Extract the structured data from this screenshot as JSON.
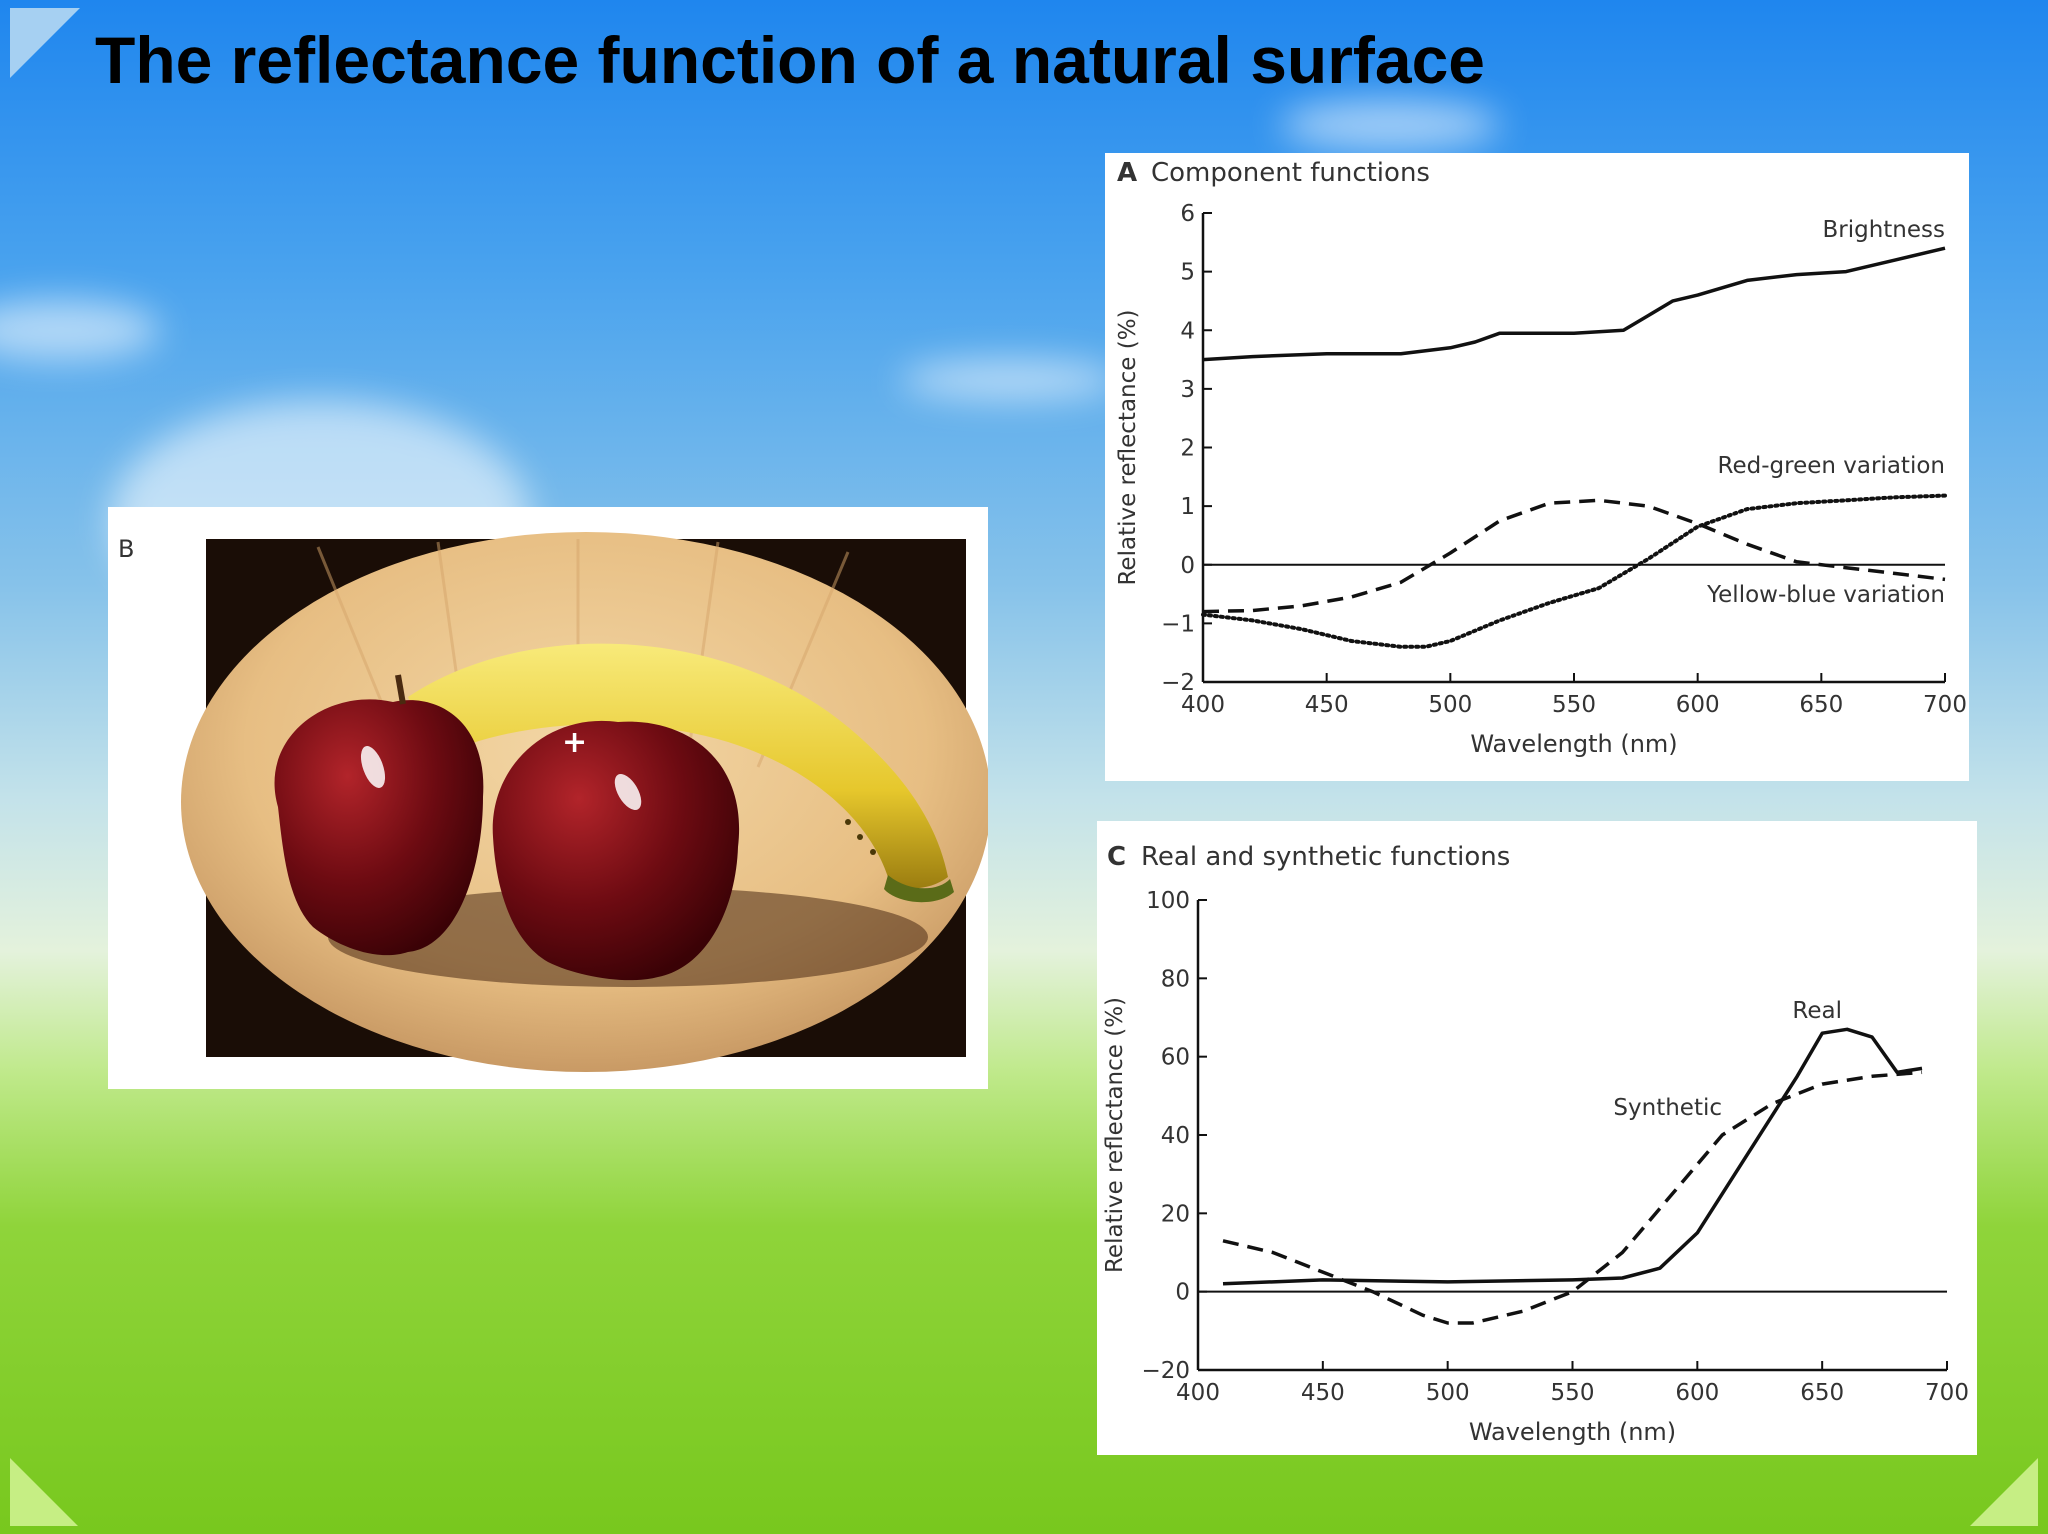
{
  "slide": {
    "title": "The reflectance function of a natural surface"
  },
  "photo": {
    "label": "B",
    "marker": "+"
  },
  "chart_data": [
    {
      "type": "line",
      "panel_letter": "A",
      "title": "Component functions",
      "xlabel": "Wavelength (nm)",
      "ylabel": "Relative reflectance (%)",
      "xlim": [
        400,
        700
      ],
      "ylim": [
        -2,
        6
      ],
      "xticks": [
        400,
        450,
        500,
        550,
        600,
        650,
        700
      ],
      "yticks": [
        -2,
        -1,
        0,
        1,
        2,
        3,
        4,
        5,
        6
      ],
      "series": [
        {
          "name": "Brightness",
          "style": "solid",
          "x": [
            400,
            420,
            450,
            480,
            500,
            510,
            520,
            530,
            550,
            570,
            580,
            590,
            600,
            620,
            640,
            660,
            680,
            700
          ],
          "y": [
            3.5,
            3.55,
            3.6,
            3.6,
            3.7,
            3.8,
            3.95,
            3.95,
            3.95,
            4.0,
            4.25,
            4.5,
            4.6,
            4.85,
            4.95,
            5.0,
            5.2,
            5.4
          ]
        },
        {
          "name": "Red-green variation",
          "style": "dashed",
          "x": [
            400,
            420,
            440,
            460,
            480,
            500,
            520,
            540,
            560,
            580,
            600,
            620,
            640,
            660,
            680,
            700
          ],
          "y": [
            -0.8,
            -0.78,
            -0.7,
            -0.55,
            -0.3,
            0.2,
            0.75,
            1.05,
            1.1,
            1.0,
            0.7,
            0.35,
            0.05,
            -0.05,
            -0.15,
            -0.25
          ]
        },
        {
          "name": "Yellow-blue variation",
          "style": "dotted",
          "x": [
            400,
            420,
            440,
            460,
            480,
            490,
            500,
            520,
            540,
            560,
            580,
            600,
            620,
            640,
            660,
            680,
            700
          ],
          "y": [
            -0.85,
            -0.95,
            -1.1,
            -1.3,
            -1.4,
            -1.4,
            -1.3,
            -0.95,
            -0.65,
            -0.4,
            0.1,
            0.65,
            0.95,
            1.05,
            1.1,
            1.15,
            1.18
          ]
        }
      ],
      "grid": false
    },
    {
      "type": "line",
      "panel_letter": "C",
      "title": "Real and synthetic functions",
      "xlabel": "Wavelength (nm)",
      "ylabel": "Relative reflectance (%)",
      "xlim": [
        400,
        700
      ],
      "ylim": [
        -20,
        100
      ],
      "xticks": [
        400,
        450,
        500,
        550,
        600,
        650,
        700
      ],
      "yticks": [
        -20,
        0,
        20,
        40,
        60,
        80,
        100
      ],
      "series": [
        {
          "name": "Real",
          "style": "solid",
          "x": [
            410,
            450,
            500,
            550,
            570,
            585,
            600,
            620,
            640,
            650,
            660,
            670,
            680,
            690
          ],
          "y": [
            2,
            3,
            2.5,
            3,
            3.5,
            6,
            15,
            35,
            55,
            66,
            67,
            65,
            56,
            57
          ]
        },
        {
          "name": "Synthetic",
          "style": "dashed",
          "x": [
            410,
            430,
            450,
            470,
            490,
            500,
            510,
            530,
            550,
            570,
            590,
            610,
            630,
            650,
            670,
            690
          ],
          "y": [
            13,
            10,
            5,
            0,
            -6,
            -8,
            -8,
            -5,
            0,
            10,
            25,
            40,
            48,
            53,
            55,
            56
          ]
        }
      ],
      "grid": false
    }
  ]
}
